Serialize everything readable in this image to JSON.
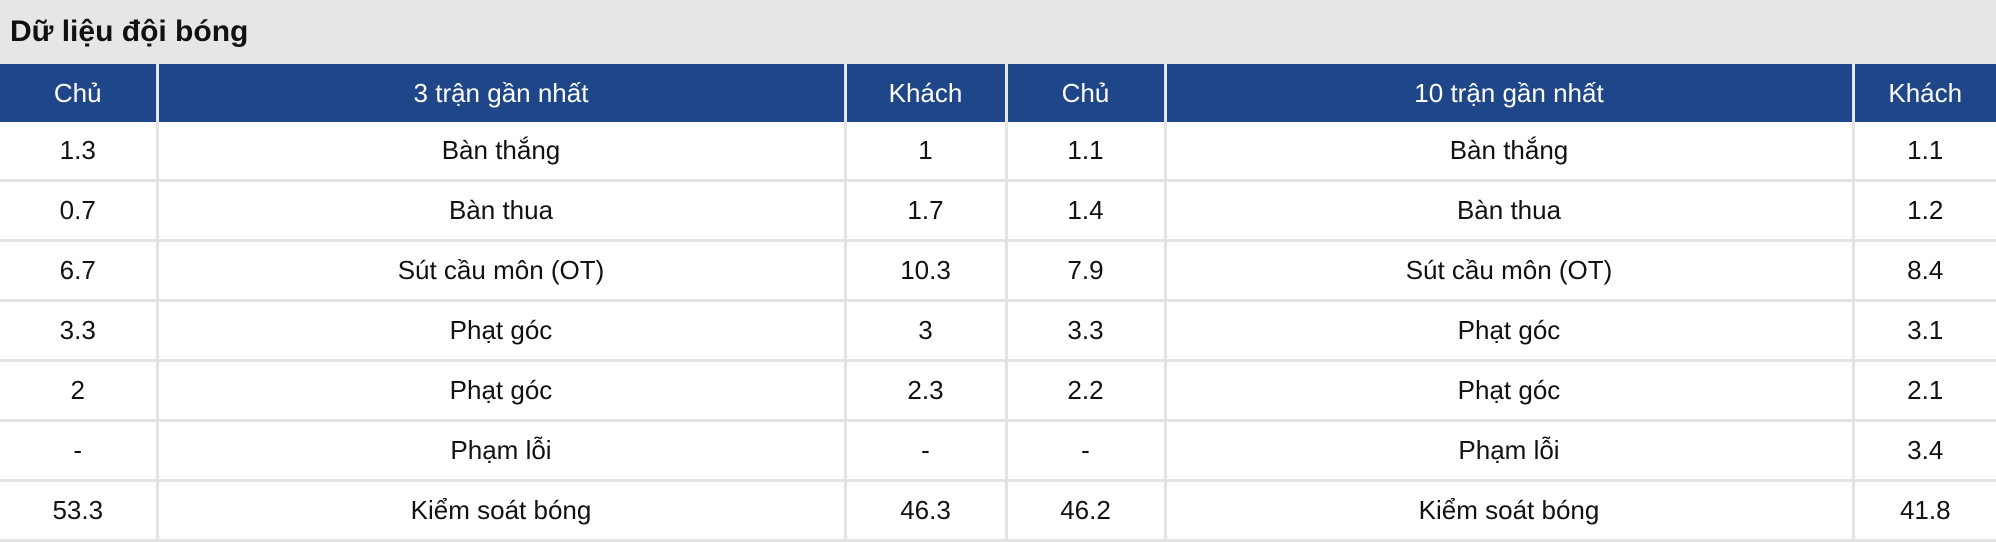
{
  "title": "Dữ liệu đội bóng",
  "colors": {
    "header_bg": "#1e4689",
    "title_bg": "#e6e6e6"
  },
  "headers": [
    "Chủ",
    "3 trận gần nhất",
    "Khách",
    "Chủ",
    "10 trận gần nhất",
    "Khách"
  ],
  "rows": [
    [
      "1.3",
      "Bàn thắng",
      "1",
      "1.1",
      "Bàn thắng",
      "1.1"
    ],
    [
      "0.7",
      "Bàn thua",
      "1.7",
      "1.4",
      "Bàn thua",
      "1.2"
    ],
    [
      "6.7",
      "Sút cầu môn (OT)",
      "10.3",
      "7.9",
      "Sút cầu môn (OT)",
      "8.4"
    ],
    [
      "3.3",
      "Phạt góc",
      "3",
      "3.3",
      "Phạt góc",
      "3.1"
    ],
    [
      "2",
      "Phạt góc",
      "2.3",
      "2.2",
      "Phạt góc",
      "2.1"
    ],
    [
      "-",
      "Phạm lỗi",
      "-",
      "-",
      "Phạm lỗi",
      "3.4"
    ],
    [
      "53.3",
      "Kiểm soát bóng",
      "46.3",
      "46.2",
      "Kiểm soát bóng",
      "41.8"
    ]
  ]
}
